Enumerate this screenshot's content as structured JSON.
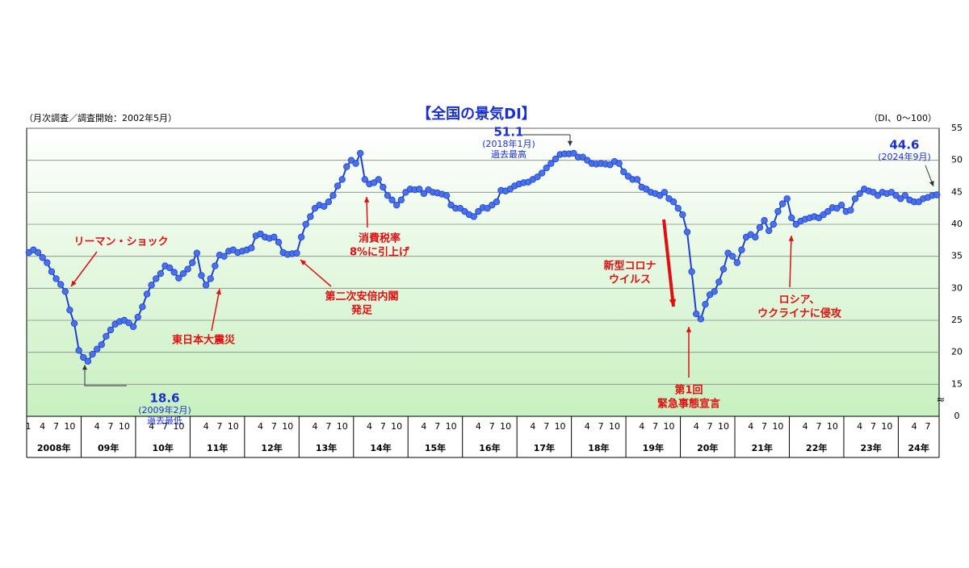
{
  "chart_data": {
    "type": "line",
    "title": "【全国の景気DI】",
    "subtitle": "（月次調査／調査開始：2002年5月）",
    "unit_note": "（DI、0～100）",
    "categories": [
      "1",
      null,
      null,
      "4",
      null,
      null,
      "7",
      null,
      null,
      "10",
      null,
      null,
      null,
      null,
      null,
      "4",
      null,
      null,
      "7",
      null,
      null,
      "10",
      null,
      null,
      null,
      null,
      null,
      "4",
      null,
      null,
      "7",
      null,
      null,
      "10",
      null,
      null,
      null,
      null,
      null,
      "4",
      null,
      null,
      "7",
      null,
      null,
      "10",
      null,
      null,
      null,
      null,
      null,
      "4",
      null,
      null,
      "7",
      null,
      null,
      "10",
      null,
      null,
      null,
      null,
      null,
      "4",
      null,
      null,
      "7",
      null,
      null,
      "10",
      null,
      null,
      null,
      null,
      null,
      "4",
      null,
      null,
      "7",
      null,
      null,
      "10",
      null,
      null,
      null,
      null,
      null,
      "4",
      null,
      null,
      "7",
      null,
      null,
      "10",
      null,
      null,
      null,
      null,
      null,
      "4",
      null,
      null,
      "7",
      null,
      null,
      "10",
      null,
      null,
      null,
      null,
      null,
      "4",
      null,
      null,
      "7",
      null,
      null,
      "10",
      null,
      null,
      null,
      null,
      null,
      "4",
      null,
      null,
      "7",
      null,
      null,
      "10",
      null,
      null,
      null,
      null,
      null,
      "4",
      null,
      null,
      "7",
      null,
      null,
      "10",
      null,
      null,
      null,
      null,
      null,
      "4",
      null,
      null,
      "7",
      null,
      null,
      "10",
      null,
      null,
      null,
      null,
      null,
      "4",
      null,
      null,
      "7",
      null,
      null,
      "10",
      null,
      null,
      null,
      null,
      null,
      "4",
      null,
      null,
      "7",
      null,
      null,
      "10",
      null,
      null,
      null,
      null,
      null,
      "4",
      null,
      null,
      "7",
      null,
      null,
      "10",
      null,
      null,
      null,
      null,
      null,
      "4",
      null,
      null,
      "7",
      null,
      null
    ],
    "years": [
      "2008年",
      "09年",
      "10年",
      "11年",
      "12年",
      "13年",
      "14年",
      "15年",
      "16年",
      "17年",
      "18年",
      "19年",
      "20年",
      "21年",
      "22年",
      "23年",
      "24年"
    ],
    "series": [
      {
        "name": "全国の景気DI",
        "color": "#1f3fd0",
        "marker_color": "#4a72e8",
        "values": [
          35.6,
          36.0,
          35.6,
          34.8,
          34.0,
          32.6,
          31.5,
          30.6,
          29.5,
          26.6,
          24.5,
          20.3,
          19.2,
          18.6,
          19.7,
          20.5,
          21.2,
          22.5,
          23.5,
          24.4,
          24.8,
          25.0,
          24.6,
          24.0,
          25.5,
          27.1,
          29.1,
          30.5,
          31.5,
          32.3,
          33.5,
          33.2,
          32.5,
          31.6,
          32.3,
          33.0,
          34.0,
          35.5,
          32.0,
          30.5,
          31.5,
          33.5,
          35.2,
          35.0,
          35.8,
          36.0,
          35.6,
          35.8,
          36.0,
          36.3,
          38.2,
          38.5,
          38.0,
          37.8,
          38.0,
          37.2,
          35.6,
          35.3,
          35.4,
          35.5,
          38.0,
          40.0,
          41.2,
          42.5,
          43.0,
          42.8,
          43.5,
          44.5,
          46.0,
          47.0,
          49.0,
          50.0,
          49.5,
          51.1,
          47.0,
          46.3,
          46.5,
          47.0,
          45.8,
          44.5,
          43.8,
          43.0,
          43.8,
          45.0,
          45.5,
          45.4,
          45.5,
          44.8,
          45.4,
          45.0,
          44.9,
          44.7,
          44.5,
          43.0,
          42.5,
          42.5,
          42.0,
          41.5,
          41.2,
          42.0,
          42.6,
          42.5,
          43.0,
          43.5,
          45.3,
          45.2,
          45.5,
          46.0,
          46.3,
          46.5,
          46.6,
          47.0,
          47.4,
          48.0,
          48.8,
          49.5,
          50.2,
          50.9,
          51.0,
          51.0,
          51.1,
          50.5,
          50.5,
          50.0,
          49.5,
          49.4,
          49.5,
          49.4,
          49.3,
          49.8,
          49.5,
          48.2,
          47.5,
          47.0,
          47.0,
          45.8,
          45.5,
          45.0,
          44.8,
          44.5,
          45.0,
          44.0,
          43.5,
          42.5,
          41.5,
          38.8,
          32.6,
          26.0,
          25.2,
          27.5,
          29.0,
          29.5,
          31.0,
          33.0,
          35.5,
          35.0,
          34.0,
          36.0,
          38.0,
          38.4,
          38.0,
          39.5,
          40.6,
          39.0,
          40.0,
          42.0,
          43.2,
          44.0,
          41.0,
          40.0,
          40.5,
          40.8,
          41.0,
          41.2,
          41.0,
          41.5,
          42.0,
          42.6,
          42.5,
          43.0,
          42.0,
          42.2,
          44.0,
          44.8,
          45.5,
          45.2,
          45.0,
          44.5,
          45.0,
          44.8,
          45.0,
          44.5,
          44.0,
          44.5,
          43.8,
          43.5,
          43.5,
          44.0,
          44.2,
          44.5,
          44.6
        ]
      }
    ],
    "ylim": [
      10,
      55
    ],
    "yticks": [
      15,
      20,
      25,
      30,
      35,
      40,
      45,
      50,
      55
    ],
    "y_break_label": "0",
    "grid": true,
    "callouts": [
      {
        "value": 18.6,
        "lines": [
          "(2009年2月)",
          "過去最低"
        ]
      },
      {
        "value": 51.1,
        "lines": [
          "(2018年1月)",
          "過去最高"
        ]
      },
      {
        "value": 44.6,
        "lines": [
          "(2024年9月)"
        ]
      }
    ],
    "annotations": [
      {
        "lines": [
          "リーマン・ショック"
        ]
      },
      {
        "lines": [
          "東日本大震災"
        ]
      },
      {
        "lines": [
          "第二次安倍内閣",
          "発足"
        ]
      },
      {
        "lines": [
          "消費税率",
          "8%に引上げ"
        ]
      },
      {
        "lines": [
          "新型コロナ",
          "ウイルス"
        ]
      },
      {
        "lines": [
          "第1回",
          "緊急事態宣言"
        ]
      },
      {
        "lines": [
          "ロシア、",
          "ウクライナに侵攻"
        ]
      }
    ]
  }
}
